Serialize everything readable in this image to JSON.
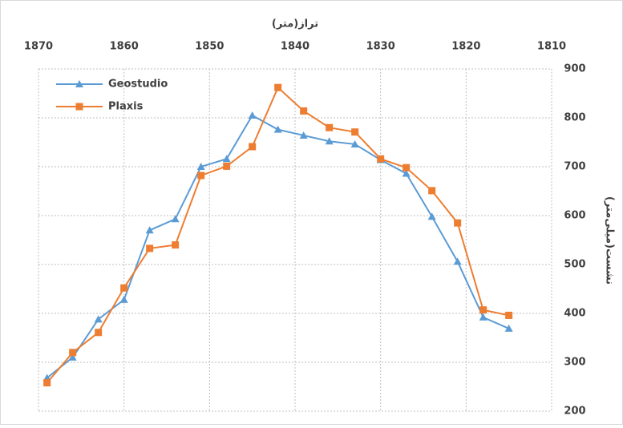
{
  "chart_data": {
    "type": "line",
    "x_title": "تراز(متر)",
    "y_title": "نشست(میلی‌متر)",
    "x": [
      1869,
      1866,
      1863,
      1860,
      1857,
      1854,
      1851,
      1848,
      1845,
      1842,
      1839,
      1836,
      1833,
      1830,
      1827,
      1824,
      1821,
      1818,
      1815
    ],
    "series": [
      {
        "name": "Geostudio",
        "color": "#5b9bd5",
        "marker": "triangle",
        "values": [
          268,
          310,
          388,
          428,
          570,
          593,
          700,
          716,
          805,
          776,
          764,
          752,
          746,
          714,
          686,
          598,
          506,
          392,
          369
        ]
      },
      {
        "name": "Plaxis",
        "color": "#ed7d31",
        "marker": "square",
        "values": [
          258,
          320,
          361,
          452,
          533,
          540,
          682,
          701,
          741,
          862,
          814,
          780,
          771,
          716,
          698,
          651,
          585,
          407,
          396
        ]
      }
    ],
    "xlim": [
      1870,
      1810
    ],
    "xticks": [
      1870,
      1860,
      1850,
      1840,
      1830,
      1820,
      1810
    ],
    "ylim": [
      200,
      900
    ],
    "yticks": [
      200,
      300,
      400,
      500,
      600,
      700,
      800,
      900
    ],
    "grid": true,
    "legend": "top-left"
  }
}
